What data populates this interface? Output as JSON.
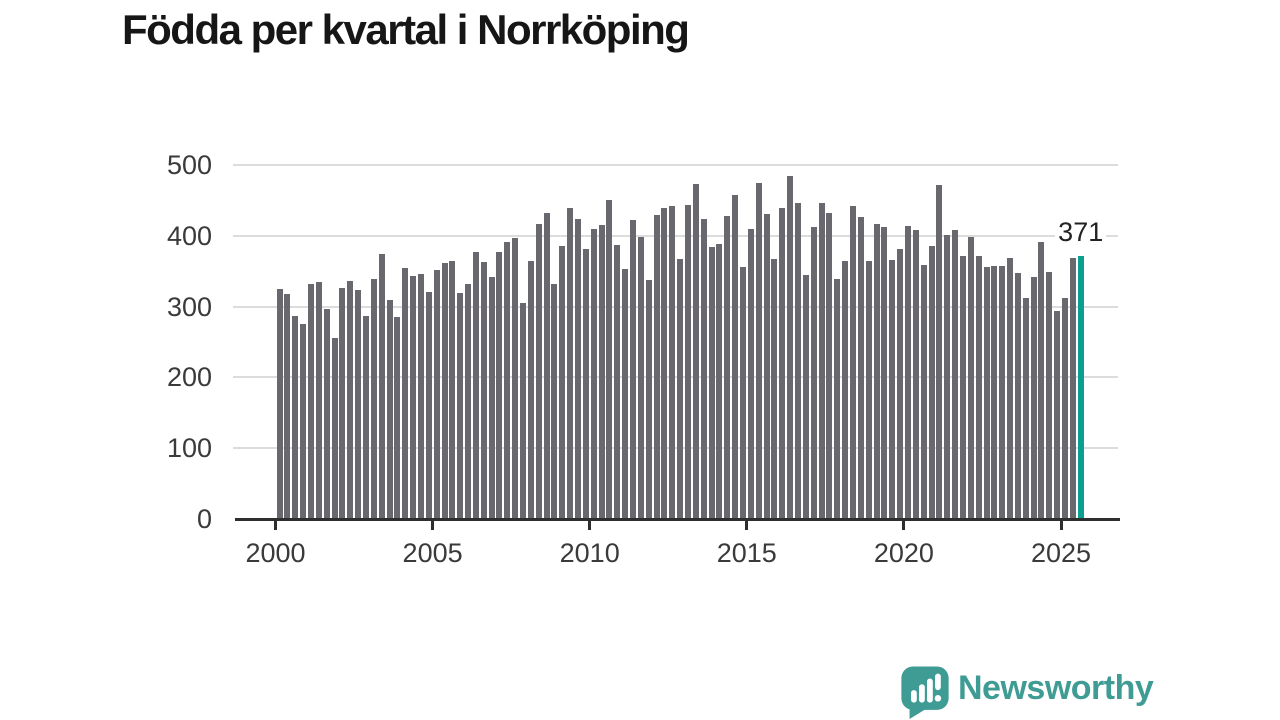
{
  "title": "Födda per kvartal i Norrköping",
  "annotation": {
    "last_value_label": "371"
  },
  "branding": {
    "wordmark": "Newsworthy",
    "icon": "newsworthy-speech-bubble-bar-chart-icon"
  },
  "colors": {
    "bar": "#68686e",
    "highlight": "#0aa091",
    "brand": "#3f9c94",
    "axis": "#2e2e2e",
    "grid": "#dcdcdc",
    "tick_text": "#3a3a3a",
    "title_text": "#161616",
    "annotation_text": "#222222"
  },
  "chart_data": {
    "type": "bar",
    "title": "Födda per kvartal i Norrköping",
    "xlabel": "",
    "ylabel": "",
    "x_unit": "quarter",
    "start_year": 2000,
    "start_quarter": 1,
    "end_year": 2025,
    "end_quarter": 3,
    "ylim": [
      0,
      500
    ],
    "y_ticks": [
      0,
      100,
      200,
      300,
      400,
      500
    ],
    "x_ticks": [
      2000,
      2005,
      2010,
      2015,
      2020,
      2025
    ],
    "grid": "horizontal",
    "legend": "none",
    "highlight_last_bar": true,
    "last_value_label": "371",
    "values": [
      325,
      318,
      287,
      275,
      332,
      335,
      297,
      256,
      327,
      336,
      324,
      287,
      339,
      375,
      310,
      285,
      355,
      343,
      346,
      321,
      352,
      361,
      365,
      319,
      332,
      377,
      363,
      342,
      377,
      391,
      397,
      305,
      364,
      417,
      432,
      332,
      385,
      439,
      424,
      382,
      410,
      415,
      451,
      387,
      353,
      423,
      398,
      337,
      430,
      439,
      442,
      368,
      443,
      473,
      424,
      384,
      389,
      428,
      457,
      356,
      409,
      474,
      431,
      368,
      439,
      484,
      446,
      345,
      413,
      446,
      432,
      339,
      365,
      442,
      427,
      365,
      417,
      413,
      366,
      381,
      414,
      408,
      359,
      385,
      472,
      401,
      408,
      371,
      398,
      371,
      356,
      358,
      358,
      369,
      348,
      312,
      342,
      391,
      349,
      294,
      312,
      369,
      371
    ]
  }
}
